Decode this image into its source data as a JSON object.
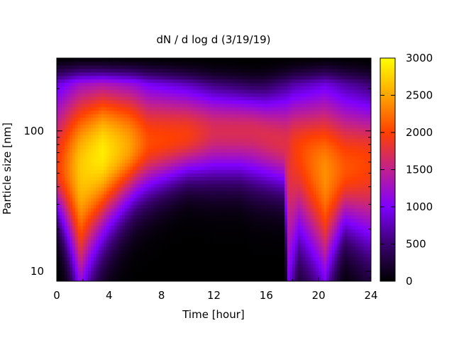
{
  "chart_data": {
    "type": "heatmap",
    "title": "dN / d log d (3/19/19)",
    "xlabel": "Time [hour]",
    "ylabel": "Particle size [nm]",
    "xlim": [
      0,
      24
    ],
    "ylim": [
      8.5,
      330
    ],
    "y_scale": "log",
    "x_ticks": [
      0,
      4,
      8,
      12,
      16,
      20,
      24
    ],
    "y_ticks": [
      10,
      100
    ],
    "colorbar": {
      "min": 0,
      "max": 3000,
      "ticks": [
        0,
        500,
        1000,
        1500,
        2000,
        2500,
        3000
      ],
      "colors": [
        "#000000",
        "#3a0070",
        "#7f00ff",
        "#c0208f",
        "#ff4000",
        "#ffa500",
        "#ffff00"
      ]
    },
    "grid": false,
    "legend": "colorbar-right",
    "mode_size_nm": [
      {
        "time": 0,
        "size": 55
      },
      {
        "time": 1.8,
        "size": 55
      },
      {
        "time": 3.5,
        "size": 70
      },
      {
        "time": 6,
        "size": 80
      },
      {
        "time": 9,
        "size": 90
      },
      {
        "time": 12,
        "size": 100
      },
      {
        "time": 15,
        "size": 100
      },
      {
        "time": 17.7,
        "size": 80
      },
      {
        "time": 20.5,
        "size": 50
      },
      {
        "time": 24,
        "size": 60
      }
    ],
    "peak_concentration": [
      {
        "time": 0,
        "value": 1900
      },
      {
        "time": 1.8,
        "value": 2700
      },
      {
        "time": 3.5,
        "value": 2900
      },
      {
        "time": 5.5,
        "value": 2500
      },
      {
        "time": 7,
        "value": 2050
      },
      {
        "time": 10,
        "value": 1950
      },
      {
        "time": 12,
        "value": 1700
      },
      {
        "time": 15,
        "value": 1700
      },
      {
        "time": 17.6,
        "value": 1750
      },
      {
        "time": 18,
        "value": 1900
      },
      {
        "time": 20.5,
        "value": 2400
      },
      {
        "time": 22,
        "value": 2100
      },
      {
        "time": 24,
        "value": 2000
      }
    ],
    "lower_boundary_nm": [
      {
        "time": 0,
        "size": 30
      },
      {
        "time": 1.8,
        "size": 11
      },
      {
        "time": 3.5,
        "size": 25
      },
      {
        "time": 6,
        "size": 40
      },
      {
        "time": 10,
        "size": 55
      },
      {
        "time": 14,
        "size": 55
      },
      {
        "time": 17.3,
        "size": 45
      },
      {
        "time": 17.7,
        "size": 9
      },
      {
        "time": 18.5,
        "size": 22
      },
      {
        "time": 20.5,
        "size": 12
      },
      {
        "time": 22,
        "size": 25
      },
      {
        "time": 24,
        "size": 20
      }
    ],
    "upper_boundary_nm": [
      {
        "time": 0,
        "size": 180
      },
      {
        "time": 6,
        "size": 200
      },
      {
        "time": 12,
        "size": 175
      },
      {
        "time": 16,
        "size": 160
      },
      {
        "time": 18,
        "size": 170
      },
      {
        "time": 24,
        "size": 140
      }
    ]
  }
}
